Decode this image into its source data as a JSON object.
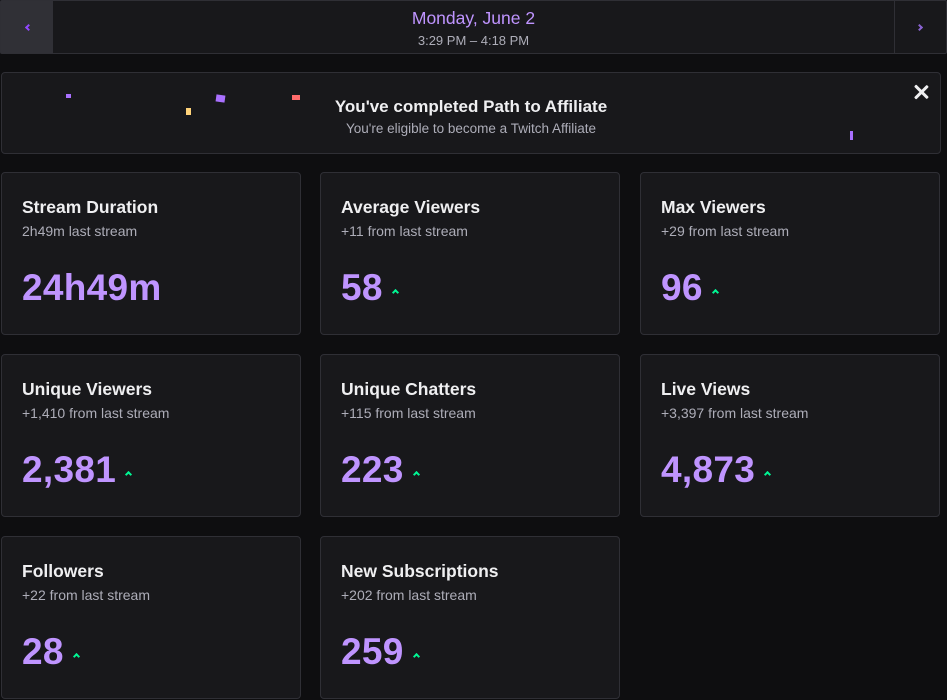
{
  "date_nav": {
    "title": "Monday, June 2",
    "time_range": "3:29 PM – 4:18 PM",
    "prev_icon": "chevron-left-icon",
    "next_icon": "chevron-right-icon"
  },
  "banner": {
    "title": "You've completed Path to Affiliate",
    "subtitle": "You're eligible to become a Twitch Affiliate",
    "close_icon": "close-icon"
  },
  "stats": [
    {
      "title": "Stream Duration",
      "delta": "2h49m last stream",
      "value": "24h49m",
      "trend": "none"
    },
    {
      "title": "Average Viewers",
      "delta": "+11 from last stream",
      "value": "58",
      "trend": "up"
    },
    {
      "title": "Max Viewers",
      "delta": "+29 from last stream",
      "value": "96",
      "trend": "up"
    },
    {
      "title": "Unique Viewers",
      "delta": "+1,410 from last stream",
      "value": "2,381",
      "trend": "up"
    },
    {
      "title": "Unique Chatters",
      "delta": "+115 from last stream",
      "value": "223",
      "trend": "up"
    },
    {
      "title": "Live Views",
      "delta": "+3,397 from last stream",
      "value": "4,873",
      "trend": "up"
    },
    {
      "title": "Followers",
      "delta": "+22 from last stream",
      "value": "28",
      "trend": "up"
    },
    {
      "title": "New Subscriptions",
      "delta": "+202 from last stream",
      "value": "259",
      "trend": "up"
    }
  ],
  "colors": {
    "accent": "#bf94ff",
    "positive": "#00f593",
    "background": "#0e0e10",
    "card": "#18181b"
  }
}
